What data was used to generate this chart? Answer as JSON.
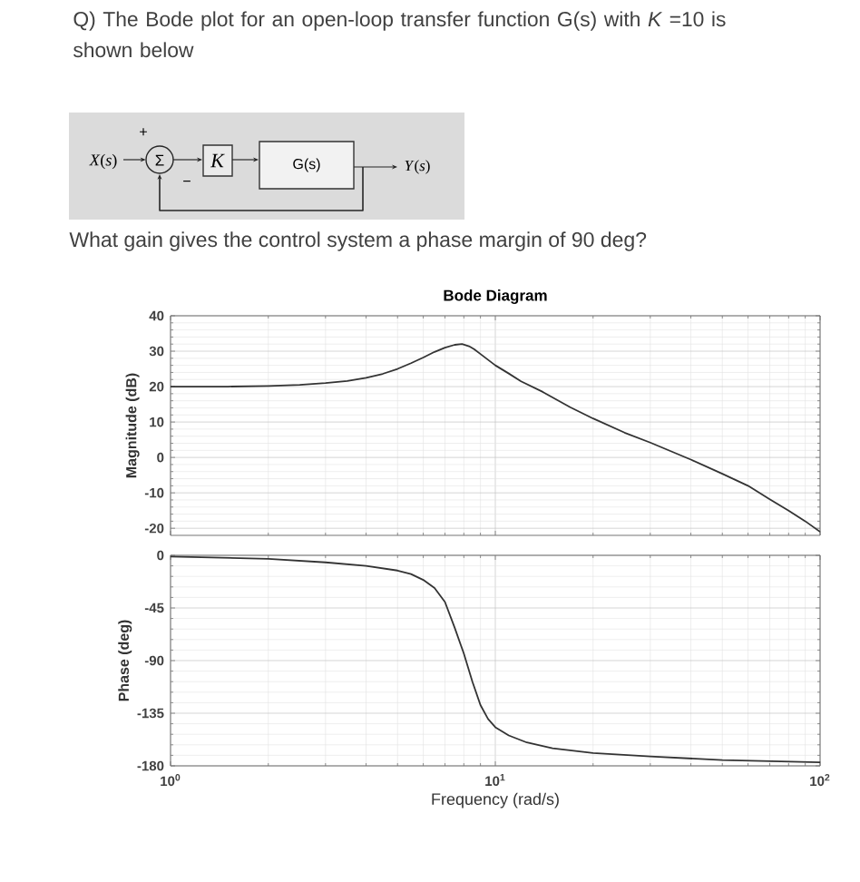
{
  "chart_data": [
    {
      "type": "line",
      "title": "Bode Diagram",
      "ylabel": "Magnitude (dB)",
      "xlim": [
        1,
        100
      ],
      "xticks": [
        1,
        10,
        100
      ],
      "ylim": [
        -22,
        40
      ],
      "yticks": [
        -20,
        -10,
        0,
        10,
        20,
        30,
        40
      ],
      "log": "x",
      "grid": true,
      "tick_labels": "y",
      "color": "#333333",
      "x": [
        1,
        1.5,
        2,
        2.5,
        3,
        3.5,
        4,
        4.5,
        5,
        5.5,
        6,
        6.5,
        7,
        7.5,
        7.9,
        8.3,
        8.6,
        9,
        10,
        11,
        12,
        14,
        17,
        20,
        25,
        30,
        40,
        50,
        60,
        70,
        80,
        90,
        100
      ],
      "values": [
        20,
        20,
        20.2,
        20.5,
        21,
        21.6,
        22.5,
        23.6,
        25,
        26.6,
        28.2,
        29.8,
        31,
        31.8,
        32,
        31.4,
        30.6,
        29.2,
        26,
        23.7,
        21.5,
        18.5,
        14.2,
        11,
        7,
        4.2,
        -0.6,
        -4.6,
        -8,
        -11.8,
        -15,
        -18,
        -21
      ],
      "annotations": [
        "Q) The Bode plot for an open-loop transfer function G(s) with *K* =10 is shown below",
        "*X*(*s*)",
        "+",
        "Σ",
        "−",
        "*K*",
        "G(s)",
        "*Y*(*s*)",
        "What gain gives the control system a phase margin of 90 deg?"
      ]
    },
    {
      "type": "line",
      "xlabel": "Frequency (rad/s)",
      "ylabel": "Phase (deg)",
      "xlim": [
        1,
        100
      ],
      "xticks": [
        {
          "value": 1,
          "label": "10$^{0}$"
        },
        {
          "value": 10,
          "label": "10$^{1}$"
        },
        {
          "value": 100,
          "label": "10$^{2}$"
        }
      ],
      "ylim": [
        -180,
        0
      ],
      "yticks": [
        -180,
        -135,
        -90,
        -45,
        0
      ],
      "log": "x",
      "grid": true,
      "color": "#333333",
      "x": [
        1,
        2,
        3,
        4,
        5,
        5.5,
        6,
        6.5,
        7,
        7.5,
        8,
        8.5,
        9,
        9.5,
        10,
        11,
        12.5,
        15,
        20,
        30,
        50,
        100
      ],
      "values": [
        -1,
        -3,
        -6,
        -9,
        -13,
        -16,
        -21,
        -28,
        -40,
        -62,
        -84,
        -108,
        -128,
        -140,
        -147,
        -154,
        -160,
        -165,
        -169,
        -172,
        -175,
        -177
      ]
    }
  ]
}
